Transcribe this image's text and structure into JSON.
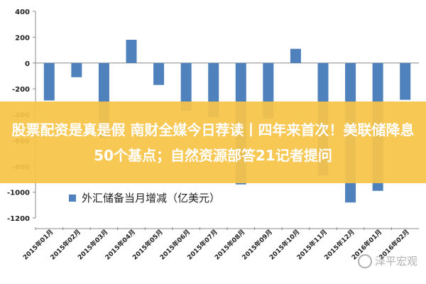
{
  "chart_data": {
    "type": "bar",
    "categories": [
      "2015年01月",
      "2015年02月",
      "2015年03月",
      "2015年04月",
      "2015年05月",
      "2015年06月",
      "2015年07月",
      "2015年08月",
      "2015年09月",
      "2015年10月",
      "2015年11月",
      "2015年12月",
      "2016年01月",
      "2016年02月"
    ],
    "series": [
      {
        "name": "外汇储备当月增减（亿美元）",
        "values": [
          -290,
          -110,
          -580,
          180,
          -170,
          -370,
          -420,
          -940,
          -430,
          110,
          -870,
          -1080,
          -990,
          -285
        ],
        "color": "#4f81bd"
      }
    ],
    "yticks": [
      400,
      200,
      0,
      -200,
      -400,
      -600,
      -800,
      -1000,
      -1200
    ],
    "ylim": [
      -1200,
      400
    ],
    "legend_position": "bottom-left",
    "grid": false
  },
  "overlay": {
    "text": "股票配资是真是假 南财全媒今日荐读丨四年来首次！美联储降息50个基点；自然资源部答21记者提问",
    "background": "#f7c448"
  },
  "watermark": "泽平宏观"
}
